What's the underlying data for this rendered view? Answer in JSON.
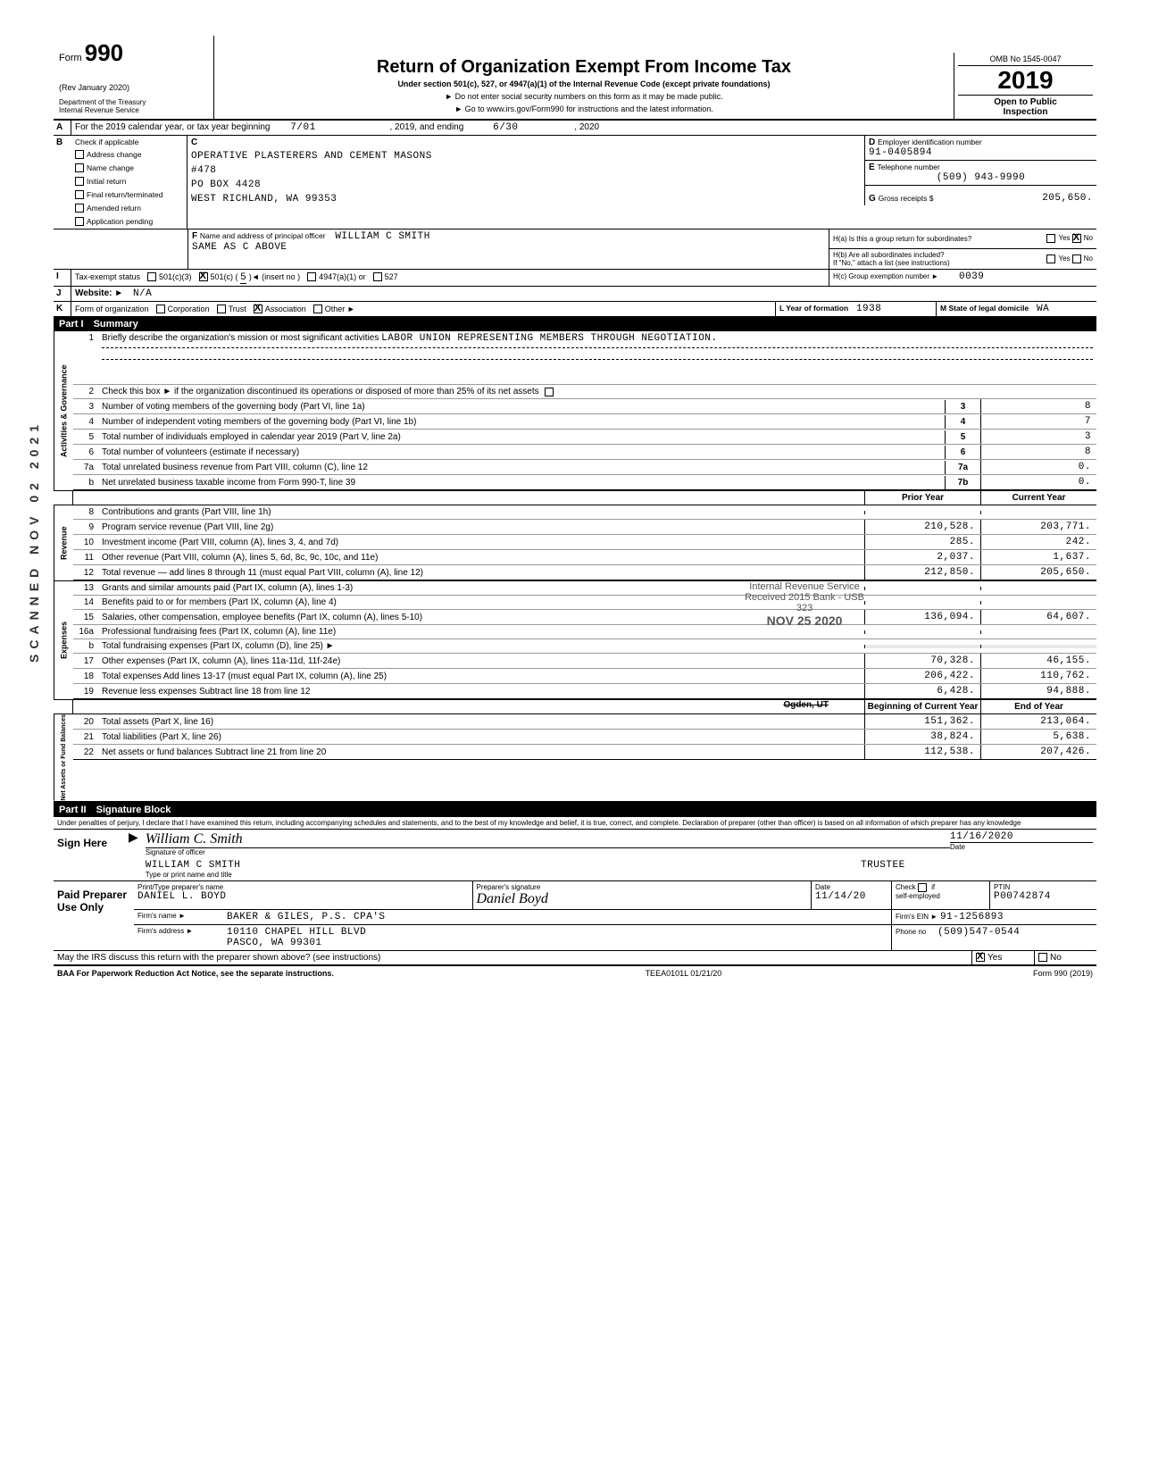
{
  "form": {
    "form_label_prefix": "Form",
    "form_number": "990",
    "revision": "(Rev January 2020)",
    "dept1": "Department of the Treasury",
    "dept2": "Internal Revenue Service",
    "title": "Return of Organization Exempt From Income Tax",
    "subtitle": "Under section 501(c), 527, or 4947(a)(1) of the Internal Revenue Code (except private foundations)",
    "note1": "► Do not enter social security numbers on this form as it may be made public.",
    "note2": "► Go to www.irs.gov/Form990 for instructions and the latest information.",
    "omb": "OMB No 1545-0047",
    "year": "2019",
    "open1": "Open to Public",
    "open2": "Inspection"
  },
  "lineA": {
    "label": "A",
    "text": "For the 2019 calendar year, or tax year beginning",
    "begin": "7/01",
    "mid": ", 2019, and ending",
    "end": "6/30",
    "endyear": ", 2020"
  },
  "blockB": {
    "label": "B",
    "check_text": "Check if applicable",
    "opts": [
      "Address change",
      "Name change",
      "Initial return",
      "Final return/terminated",
      "Amended return",
      "Application pending"
    ]
  },
  "blockC": {
    "label": "C",
    "name1": "OPERATIVE PLASTERERS AND CEMENT MASONS",
    "name2": "#478",
    "addr1": "PO BOX 4428",
    "addr2": "WEST RICHLAND, WA 99353"
  },
  "blockD": {
    "label": "D",
    "text": "Employer identification number",
    "value": "91-0405894"
  },
  "blockE": {
    "label": "E",
    "text": "Telephone number",
    "value": "(509) 943-9990"
  },
  "blockG": {
    "label": "G",
    "text": "Gross receipts $",
    "value": "205,650."
  },
  "blockF": {
    "label": "F",
    "text": "Name and address of principal officer",
    "name": "WILLIAM C SMITH",
    "addr": "SAME AS C ABOVE"
  },
  "blockH": {
    "a_text": "H(a) Is this a group return for subordinates?",
    "b_text": "H(b) Are all subordinates included?",
    "b_note": "If \"No,\" attach a list (see instructions)",
    "c_text": "H(c) Group exemption number ►",
    "c_value": "0039",
    "yes": "Yes",
    "no": "No"
  },
  "lineI": {
    "label": "I",
    "text": "Tax-exempt status",
    "opt_501c3": "501(c)(3)",
    "opt_501c": "501(c) (",
    "opt_501c_num": "5",
    "opt_501c_tail": ")◄ (insert no )",
    "opt_4947": "4947(a)(1) or",
    "opt_527": "527"
  },
  "lineJ": {
    "label": "J",
    "text": "Website: ►",
    "value": "N/A"
  },
  "lineK": {
    "label": "K",
    "text": "Form of organization",
    "opts": [
      "Corporation",
      "Trust",
      "Association",
      "Other ►"
    ],
    "checked_idx": 2,
    "L_text": "L Year of formation",
    "L_value": "1938",
    "M_text": "M State of legal domicile",
    "M_value": "WA"
  },
  "part1": {
    "header_num": "Part I",
    "header_title": "Summary",
    "q1_num": "1",
    "q1_text": "Briefly describe the organization's mission or most significant activities",
    "q1_val": "LABOR UNION REPRESENTING MEMBERS THROUGH NEGOTIATION.",
    "q2_num": "2",
    "q2_text": "Check this box ► if the organization discontinued its operations or disposed of more than 25% of its net assets",
    "governance_label": "Activities & Governance",
    "revenue_label": "Revenue",
    "expenses_label": "Expenses",
    "netassets_label": "Net Assets or Fund Balances",
    "prior_year": "Prior Year",
    "current_year": "Current Year",
    "begin_year": "Beginning of Current Year",
    "end_year": "End of Year",
    "lines_gov": [
      {
        "n": "3",
        "d": "Number of voting members of the governing body (Part VI, line 1a)",
        "box": "3",
        "v": "8"
      },
      {
        "n": "4",
        "d": "Number of independent voting members of the governing body (Part VI, line 1b)",
        "box": "4",
        "v": "7"
      },
      {
        "n": "5",
        "d": "Total number of individuals employed in calendar year 2019 (Part V, line 2a)",
        "box": "5",
        "v": "3"
      },
      {
        "n": "6",
        "d": "Total number of volunteers (estimate if necessary)",
        "box": "6",
        "v": "8"
      },
      {
        "n": "7a",
        "d": "Total unrelated business revenue from Part VIII, column (C), line 12",
        "box": "7a",
        "v": "0."
      },
      {
        "n": "b",
        "d": "Net unrelated business taxable income from Form 990-T, line 39",
        "box": "7b",
        "v": "0."
      }
    ],
    "lines_rev": [
      {
        "n": "8",
        "d": "Contributions and grants (Part VIII, line 1h)",
        "py": "",
        "cy": ""
      },
      {
        "n": "9",
        "d": "Program service revenue (Part VIII, line 2g)",
        "py": "210,528.",
        "cy": "203,771."
      },
      {
        "n": "10",
        "d": "Investment income (Part VIII, column (A), lines 3, 4, and 7d)",
        "py": "285.",
        "cy": "242."
      },
      {
        "n": "11",
        "d": "Other revenue (Part VIII, column (A), lines 5, 6d, 8c, 9c, 10c, and 11e)",
        "py": "2,037.",
        "cy": "1,637."
      },
      {
        "n": "12",
        "d": "Total revenue — add lines 8 through 11 (must equal Part VIII, column (A), line 12)",
        "py": "212,850.",
        "cy": "205,650."
      }
    ],
    "lines_exp": [
      {
        "n": "13",
        "d": "Grants and similar amounts paid (Part IX, column (A), lines 1-3)",
        "py": "",
        "cy": ""
      },
      {
        "n": "14",
        "d": "Benefits paid to or for members (Part IX, column (A), line 4)",
        "py": "",
        "cy": ""
      },
      {
        "n": "15",
        "d": "Salaries, other compensation, employee benefits (Part IX, column (A), lines 5-10)",
        "py": "136,094.",
        "cy": "64,607."
      },
      {
        "n": "16a",
        "d": "Professional fundraising fees (Part IX, column (A), line 11e)",
        "py": "",
        "cy": ""
      },
      {
        "n": "b",
        "d": "Total fundraising expenses (Part IX, column (D), line 25) ►",
        "py": "",
        "cy": "",
        "shaded": true
      },
      {
        "n": "17",
        "d": "Other expenses (Part IX, column (A), lines 11a-11d, 11f-24e)",
        "py": "70,328.",
        "cy": "46,155."
      },
      {
        "n": "18",
        "d": "Total expenses Add lines 13-17 (must equal Part IX, column (A), line 25)",
        "py": "206,422.",
        "cy": "110,762."
      },
      {
        "n": "19",
        "d": "Revenue less expenses Subtract line 18 from line 12",
        "py": "6,428.",
        "cy": "94,888."
      }
    ],
    "lines_net": [
      {
        "n": "20",
        "d": "Total assets (Part X, line 16)",
        "py": "151,362.",
        "cy": "213,064."
      },
      {
        "n": "21",
        "d": "Total liabilities (Part X, line 26)",
        "py": "38,824.",
        "cy": "5,638."
      },
      {
        "n": "22",
        "d": "Net assets or fund balances Subtract line 21 from line 20",
        "py": "112,538.",
        "cy": "207,426."
      }
    ]
  },
  "stamps": {
    "line1": "Internal Revenue Service",
    "line2": "Received 2015 Bank - USB",
    "line3": "323",
    "line4": "NOV 25 2020",
    "line5": "Ogden, UT"
  },
  "part2": {
    "header_num": "Part II",
    "header_title": "Signature Block",
    "declaration": "Under penalties of perjury, I declare that I have examined this return, including accompanying schedules and statements, and to the best of my knowledge and belief, it is true, correct, and complete. Declaration of preparer (other than officer) is based on all information of which preparer has any knowledge",
    "sign_here": "Sign Here",
    "sig_label": "Signature of officer",
    "date_label": "Date",
    "sig_date": "11/16/2020",
    "officer_name": "WILLIAM C SMITH",
    "officer_title": "TRUSTEE",
    "type_label": "Type or print name and title",
    "paid_label": "Paid Preparer Use Only",
    "prep_name_lbl": "Print/Type preparer's name",
    "prep_name": "DANIEL L. BOYD",
    "prep_sig_lbl": "Preparer's signature",
    "prep_date": "11/14/20",
    "check_lbl": "Check",
    "self_emp": "self-employed",
    "if_lbl": "if",
    "ptin_lbl": "PTIN",
    "ptin": "P00742874",
    "firm_name_lbl": "Firm's name ►",
    "firm_name": "BAKER & GILES, P.S. CPA'S",
    "firm_ein_lbl": "Firm's EIN ►",
    "firm_ein": "91-1256893",
    "firm_addr_lbl": "Firm's address ►",
    "firm_addr1": "10110 CHAPEL HILL BLVD",
    "firm_addr2": "PASCO, WA 99301",
    "phone_lbl": "Phone no",
    "phone": "(509)547-0544",
    "discuss": "May the IRS discuss this return with the preparer shown above? (see instructions)",
    "yes": "Yes",
    "no": "No"
  },
  "footer": {
    "baa": "BAA For Paperwork Reduction Act Notice, see the separate instructions.",
    "code": "TEEA0101L 01/21/20",
    "form": "Form 990 (2019)"
  },
  "margin": {
    "scanned": "SCANNED NOV 02 2021"
  }
}
